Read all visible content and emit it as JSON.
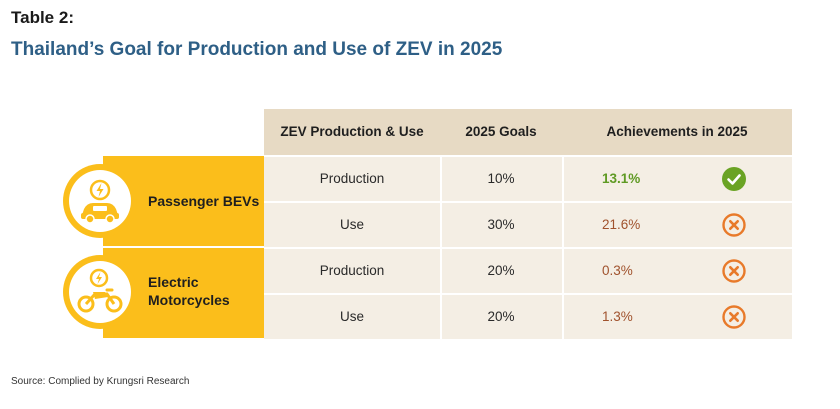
{
  "header": {
    "table_label": "Table 2:",
    "title": "Thailand’s Goal for Production and Use of ZEV in 2025"
  },
  "columns": [
    "ZEV Production & Use",
    "2025 Goals",
    "Achievements in 2025"
  ],
  "categories": [
    {
      "label_lines": [
        "Passenger BEVs"
      ],
      "icon": "ev-car-charging-icon"
    },
    {
      "label_lines": [
        "Electric",
        "Motorcycles"
      ],
      "icon": "electric-motorcycle-icon"
    }
  ],
  "rows": [
    {
      "item": "Production",
      "goal": "10%",
      "achievement": "13.1%",
      "status": "achieved",
      "status_icon": "check-circle-icon"
    },
    {
      "item": "Use",
      "goal": "30%",
      "achievement": "21.6%",
      "status": "not-achieved",
      "status_icon": "x-circle-icon"
    },
    {
      "item": "Production",
      "goal": "20%",
      "achievement": "0.3%",
      "status": "not-achieved",
      "status_icon": "x-circle-icon"
    },
    {
      "item": "Use",
      "goal": "20%",
      "achievement": "1.3%",
      "status": "not-achieved",
      "status_icon": "x-circle-icon"
    }
  ],
  "colors": {
    "title": "#2e5f86",
    "accent_yellow": "#fbbe1b",
    "header_bg": "#e7dac4",
    "row_bg": "#f4eee4",
    "achieved_green": "#6aa324",
    "not_achieved_orange": "#e87a2a"
  },
  "footer": {
    "source": "Source: Complied by Krungsri Research"
  }
}
